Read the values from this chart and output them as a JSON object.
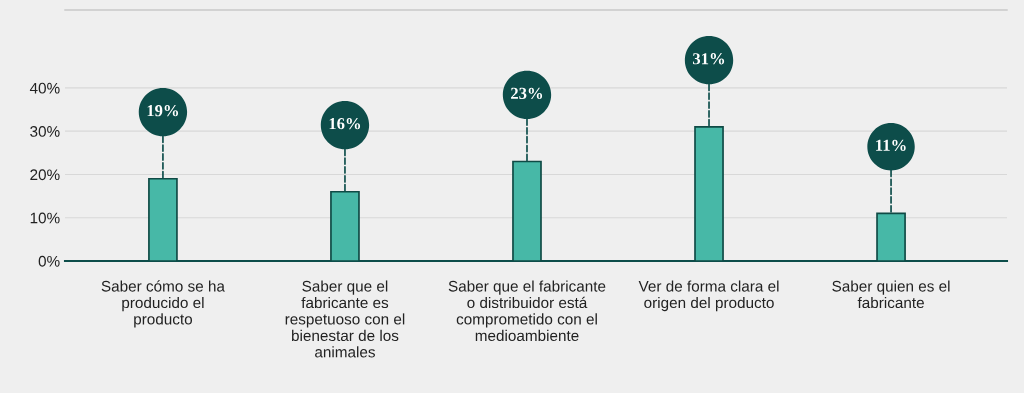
{
  "chart_data": {
    "type": "bar",
    "categories": [
      "Saber cómo se ha\nproducido el\nproducto",
      "Saber que el\nfabricante es\nrespetuoso con el\nbienestar de los\nanimales",
      "Saber que el fabricante\no distribuidor está\ncomprometido con el\nmedioambiente",
      "Ver de forma clara el\norigen del producto",
      "Saber quien es el\nfabricante"
    ],
    "values": [
      19,
      16,
      23,
      31,
      11
    ],
    "value_labels": [
      "19%",
      "16%",
      "23%",
      "31%",
      "11%"
    ],
    "color": "#47b8a7",
    "ylim": [
      0,
      58
    ],
    "yticks": [
      {
        "value": 0,
        "label": "0%"
      },
      {
        "value": 10,
        "label": "10%"
      },
      {
        "value": 20,
        "label": "20%"
      },
      {
        "value": 30,
        "label": "30%"
      },
      {
        "value": 40,
        "label": "40%"
      }
    ],
    "grid": "y"
  }
}
